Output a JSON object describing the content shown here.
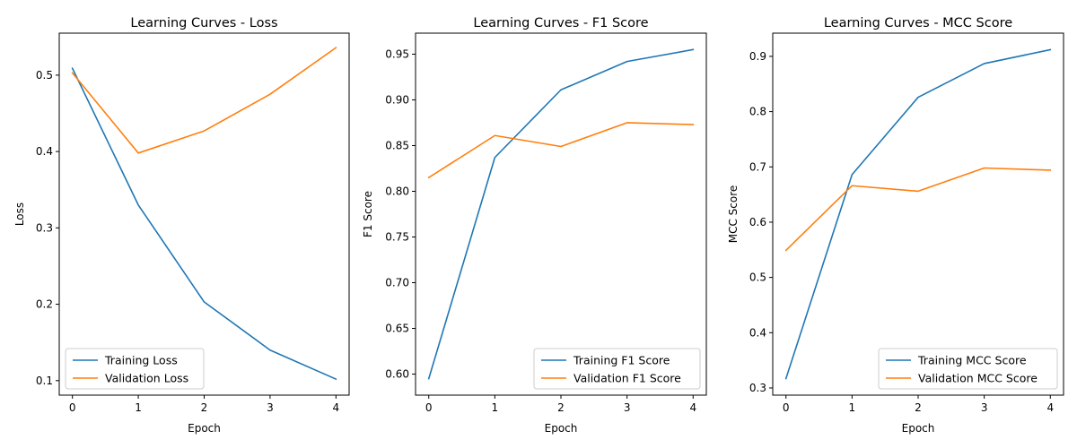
{
  "chart_data": [
    {
      "type": "line",
      "title": "Learning Curves - Loss",
      "xlabel": "Epoch",
      "ylabel": "Loss",
      "x": [
        0,
        1,
        2,
        3,
        4
      ],
      "xticks": [
        0,
        1,
        2,
        3,
        4
      ],
      "yticks": [
        0.1,
        0.2,
        0.3,
        0.4,
        0.5
      ],
      "xlim": [
        -0.2,
        4.2
      ],
      "ylim": [
        0.081,
        0.555
      ],
      "grid": false,
      "legend_position": "lower-left",
      "series": [
        {
          "name": "Training Loss",
          "color": "#1f77b4",
          "values": [
            0.509,
            0.33,
            0.203,
            0.14,
            0.102
          ]
        },
        {
          "name": "Validation Loss",
          "color": "#ff7f0e",
          "values": [
            0.503,
            0.398,
            0.427,
            0.475,
            0.536
          ]
        }
      ]
    },
    {
      "type": "line",
      "title": "Learning Curves - F1 Score",
      "xlabel": "Epoch",
      "ylabel": "F1 Score",
      "x": [
        0,
        1,
        2,
        3,
        4
      ],
      "xticks": [
        0,
        1,
        2,
        3,
        4
      ],
      "yticks": [
        0.6,
        0.65,
        0.7,
        0.75,
        0.8,
        0.85,
        0.9,
        0.95
      ],
      "xlim": [
        -0.2,
        4.2
      ],
      "ylim": [
        0.577,
        0.973
      ],
      "grid": false,
      "legend_position": "lower-right",
      "series": [
        {
          "name": "Training F1 Score",
          "color": "#1f77b4",
          "values": [
            0.595,
            0.837,
            0.911,
            0.942,
            0.955
          ]
        },
        {
          "name": "Validation F1 Score",
          "color": "#ff7f0e",
          "values": [
            0.815,
            0.861,
            0.849,
            0.875,
            0.873
          ]
        }
      ]
    },
    {
      "type": "line",
      "title": "Learning Curves - MCC Score",
      "xlabel": "Epoch",
      "ylabel": "MCC Score",
      "x": [
        0,
        1,
        2,
        3,
        4
      ],
      "xticks": [
        0,
        1,
        2,
        3,
        4
      ],
      "yticks": [
        0.3,
        0.4,
        0.5,
        0.6,
        0.7,
        0.8,
        0.9
      ],
      "xlim": [
        -0.2,
        4.2
      ],
      "ylim": [
        0.287,
        0.942
      ],
      "grid": false,
      "legend_position": "lower-right",
      "series": [
        {
          "name": "Training MCC Score",
          "color": "#1f77b4",
          "values": [
            0.317,
            0.686,
            0.826,
            0.887,
            0.912
          ]
        },
        {
          "name": "Validation MCC Score",
          "color": "#ff7f0e",
          "values": [
            0.549,
            0.666,
            0.656,
            0.698,
            0.694
          ]
        }
      ]
    }
  ]
}
